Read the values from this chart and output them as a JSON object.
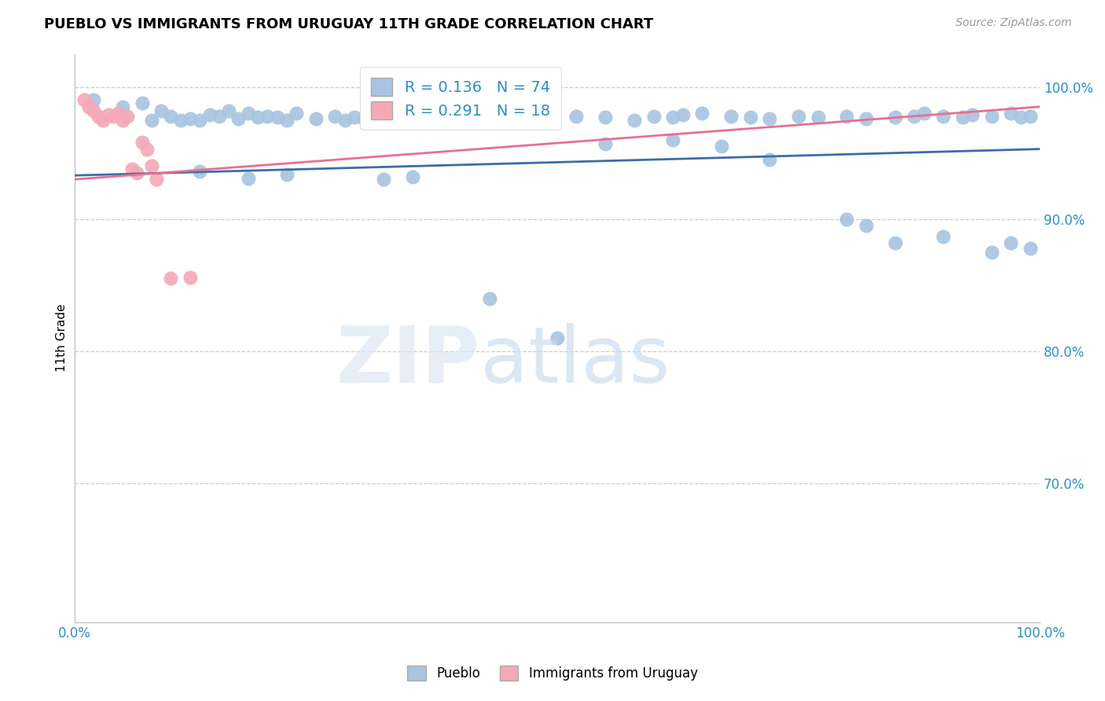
{
  "title": "PUEBLO VS IMMIGRANTS FROM URUGUAY 11TH GRADE CORRELATION CHART",
  "source": "Source: ZipAtlas.com",
  "ylabel": "11th Grade",
  "xlim": [
    0.0,
    1.0
  ],
  "ylim": [
    0.595,
    1.025
  ],
  "yticks": [
    0.7,
    0.8,
    0.9,
    1.0
  ],
  "ytick_labels": [
    "70.0%",
    "80.0%",
    "90.0%",
    "100.0%"
  ],
  "blue_R": 0.136,
  "blue_N": 74,
  "pink_R": 0.291,
  "pink_N": 18,
  "blue_color": "#a8c4e0",
  "pink_color": "#f4a8b8",
  "blue_line_color": "#3a6ea5",
  "pink_line_color": "#e87090",
  "legend_color": "#2b8fca",
  "blue_scatter_x": [
    0.02,
    0.05,
    0.07,
    0.08,
    0.09,
    0.1,
    0.11,
    0.12,
    0.13,
    0.14,
    0.15,
    0.16,
    0.17,
    0.18,
    0.19,
    0.2,
    0.21,
    0.22,
    0.23,
    0.25,
    0.27,
    0.28,
    0.29,
    0.3,
    0.32,
    0.33,
    0.35,
    0.37,
    0.4,
    0.42,
    0.45,
    0.48,
    0.52,
    0.55,
    0.58,
    0.6,
    0.62,
    0.63,
    0.65,
    0.68,
    0.7,
    0.72,
    0.75,
    0.77,
    0.8,
    0.82,
    0.85,
    0.87,
    0.88,
    0.9,
    0.92,
    0.93,
    0.95,
    0.97,
    0.98,
    0.99,
    0.13,
    0.18,
    0.22,
    0.32,
    0.35,
    0.55,
    0.62,
    0.67,
    0.72,
    0.8,
    0.82,
    0.85,
    0.9,
    0.95,
    0.97,
    0.99,
    0.43,
    0.5
  ],
  "blue_scatter_y": [
    0.99,
    0.985,
    0.988,
    0.975,
    0.982,
    0.978,
    0.975,
    0.976,
    0.975,
    0.979,
    0.978,
    0.982,
    0.976,
    0.98,
    0.977,
    0.978,
    0.977,
    0.975,
    0.98,
    0.976,
    0.978,
    0.975,
    0.977,
    0.976,
    0.975,
    0.978,
    0.977,
    0.978,
    0.976,
    0.978,
    0.975,
    0.976,
    0.978,
    0.977,
    0.975,
    0.978,
    0.977,
    0.979,
    0.98,
    0.978,
    0.977,
    0.976,
    0.978,
    0.977,
    0.978,
    0.976,
    0.977,
    0.978,
    0.98,
    0.978,
    0.977,
    0.979,
    0.978,
    0.98,
    0.977,
    0.978,
    0.936,
    0.931,
    0.934,
    0.93,
    0.932,
    0.957,
    0.96,
    0.955,
    0.945,
    0.9,
    0.895,
    0.882,
    0.887,
    0.875,
    0.882,
    0.878,
    0.84,
    0.81
  ],
  "pink_scatter_x": [
    0.01,
    0.015,
    0.02,
    0.025,
    0.03,
    0.035,
    0.04,
    0.045,
    0.05,
    0.055,
    0.06,
    0.065,
    0.07,
    0.075,
    0.08,
    0.085,
    0.1,
    0.12
  ],
  "pink_scatter_y": [
    0.99,
    0.985,
    0.982,
    0.978,
    0.975,
    0.979,
    0.978,
    0.98,
    0.975,
    0.978,
    0.938,
    0.935,
    0.958,
    0.953,
    0.94,
    0.93,
    0.855,
    0.856
  ]
}
